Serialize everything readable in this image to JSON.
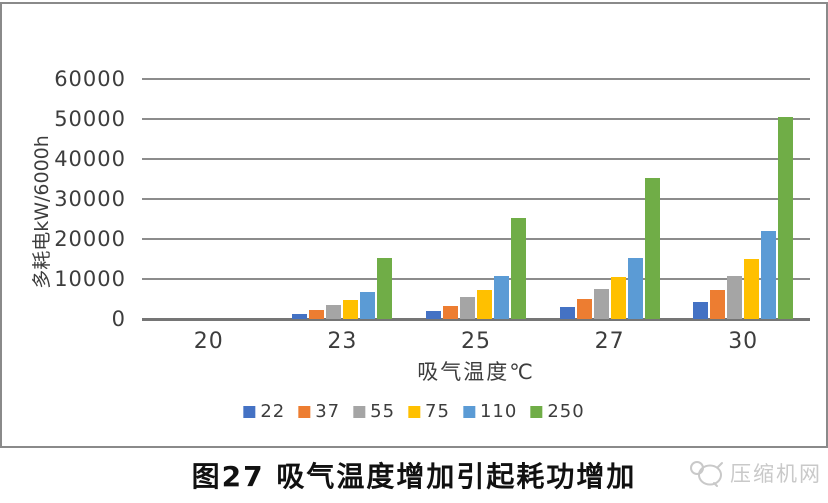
{
  "chart_data": {
    "type": "bar",
    "title": "图27 吸气温度增加引起耗功增加",
    "xlabel": "吸气温度℃",
    "ylabel": "多耗电kW/6000h",
    "categories": [
      "20",
      "23",
      "25",
      "27",
      "30"
    ],
    "series": [
      {
        "name": "22",
        "color": "#4472C4",
        "values": [
          0,
          1300,
          2000,
          3000,
          4200
        ]
      },
      {
        "name": "37",
        "color": "#ED7D31",
        "values": [
          0,
          2300,
          3300,
          5000,
          7300
        ]
      },
      {
        "name": "55",
        "color": "#A5A5A5",
        "values": [
          0,
          3500,
          5400,
          7400,
          10800
        ]
      },
      {
        "name": "75",
        "color": "#FFC000",
        "values": [
          0,
          4700,
          7300,
          10600,
          14900
        ]
      },
      {
        "name": "110",
        "color": "#5B9BD5",
        "values": [
          0,
          6800,
          10800,
          15300,
          22000
        ]
      },
      {
        "name": "250",
        "color": "#70AD47",
        "values": [
          0,
          15300,
          25300,
          35200,
          50400
        ]
      }
    ],
    "ylim": [
      0,
      60000
    ],
    "y_ticks": [
      0,
      10000,
      20000,
      30000,
      40000,
      50000,
      60000
    ],
    "grid": "horizontal",
    "legend_position": "bottom",
    "gridline_color": "#8c8c8c",
    "frame_border_color": "#8a8a8a"
  },
  "caption": "图27 吸气温度增加引起耗功增加",
  "watermark": {
    "text": "压缩机网",
    "icon": "compressor-net-logo",
    "color": "#c9c9c9"
  }
}
